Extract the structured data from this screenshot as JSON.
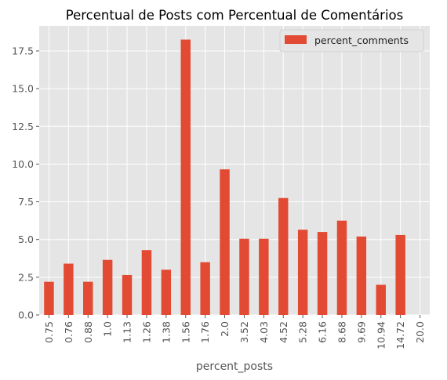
{
  "chart_data": {
    "type": "bar",
    "title": "Percentual de Posts com Percentual de Comentários",
    "xlabel": "percent_posts",
    "ylabel": "",
    "categories": [
      "0.75",
      "0.76",
      "0.88",
      "1.0",
      "1.13",
      "1.26",
      "1.38",
      "1.56",
      "1.76",
      "2.0",
      "3.52",
      "4.03",
      "4.52",
      "5.28",
      "6.16",
      "8.68",
      "9.69",
      "10.94",
      "14.72",
      "20.0"
    ],
    "series": [
      {
        "name": "percent_comments",
        "values": [
          2.2,
          3.4,
          2.2,
          3.65,
          2.65,
          4.3,
          3.0,
          18.25,
          3.5,
          9.65,
          5.05,
          5.05,
          7.75,
          5.65,
          5.5,
          6.25,
          5.2,
          2.0,
          5.3,
          0.0
        ],
        "color": "#E24A33"
      }
    ],
    "ylim": [
      0,
      19.16
    ],
    "yticks": [
      "0.0",
      "2.5",
      "5.0",
      "7.5",
      "10.0",
      "12.5",
      "15.0",
      "17.5"
    ],
    "grid": true,
    "legend_position": "top-right",
    "style": {
      "plot_background": "#E5E5E5",
      "grid_color": "#FFFFFF",
      "text_color": "#555555",
      "title_color": "#000000"
    }
  }
}
